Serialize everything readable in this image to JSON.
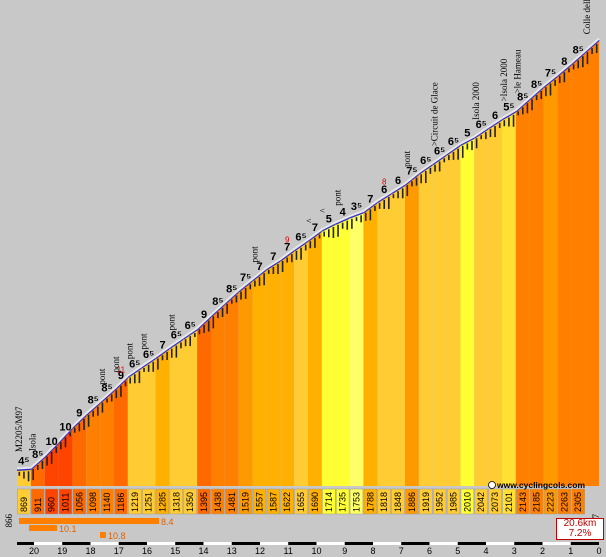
{
  "site": {
    "url": "www.cyclingcols.com",
    "icon": "copyright-icon"
  },
  "summary": {
    "length": "20.6km",
    "gradient": "7.2%"
  },
  "chart_data": {
    "type": "area",
    "title": "",
    "xlabel": "",
    "ylabel": "",
    "x_reversed": true,
    "xlim": [
      0,
      20.6
    ],
    "ylim": [
      820,
      2360
    ],
    "x_ticks": [
      "20",
      "19",
      "18",
      "17",
      "16",
      "15",
      "14",
      "13",
      "12",
      "11",
      "10",
      "9",
      "8",
      "7",
      "6",
      "5",
      "4",
      "3",
      "2",
      "1",
      "0"
    ],
    "start_elevation": "866",
    "end_elevation": "2347",
    "segments": [
      {
        "elev": "869",
        "grad": "4⁵",
        "color": "#ffcc33"
      },
      {
        "elev": "911",
        "grad": "8⁵",
        "color": "#ff6a00"
      },
      {
        "elev": "960",
        "grad": "10",
        "color": "#ff4400"
      },
      {
        "elev": "1011",
        "grad": "10",
        "color": "#ff4400"
      },
      {
        "elev": "1056",
        "grad": "9",
        "color": "#ff6a00"
      },
      {
        "elev": "1098",
        "grad": "8⁵",
        "color": "#ff8000"
      },
      {
        "elev": "1140",
        "grad": "8⁵",
        "color": "#ff8000"
      },
      {
        "elev": "1186",
        "grad": "9",
        "color": "#ff6a00"
      },
      {
        "elev": "1219",
        "grad": "6⁵",
        "color": "#ffcc33"
      },
      {
        "elev": "1251",
        "grad": "6⁵",
        "color": "#ffcc33"
      },
      {
        "elev": "1285",
        "grad": "7",
        "color": "#ffb000"
      },
      {
        "elev": "1318",
        "grad": "6⁵",
        "color": "#ffcc33"
      },
      {
        "elev": "1350",
        "grad": "6⁵",
        "color": "#ffcc33"
      },
      {
        "elev": "1395",
        "grad": "9",
        "color": "#ff6a00"
      },
      {
        "elev": "1438",
        "grad": "8⁵",
        "color": "#ff8000"
      },
      {
        "elev": "1481",
        "grad": "8⁵",
        "color": "#ff8000"
      },
      {
        "elev": "1519",
        "grad": "7⁵",
        "color": "#ff9900"
      },
      {
        "elev": "1557",
        "grad": "7",
        "color": "#ffb000"
      },
      {
        "elev": "1587",
        "grad": "7",
        "color": "#ffb000"
      },
      {
        "elev": "1622",
        "grad": "7",
        "color": "#ffb000"
      },
      {
        "elev": "1655",
        "grad": "6⁵",
        "color": "#ffcc33"
      },
      {
        "elev": "1690",
        "grad": "7",
        "color": "#ffb000"
      },
      {
        "elev": "1714",
        "grad": "5",
        "color": "#ffff33"
      },
      {
        "elev": "1735",
        "grad": "4",
        "color": "#ffff33"
      },
      {
        "elev": "1753",
        "grad": "3⁵",
        "color": "#ffff66"
      },
      {
        "elev": "1788",
        "grad": "7",
        "color": "#ffb000"
      },
      {
        "elev": "1818",
        "grad": "6",
        "color": "#ffcc33"
      },
      {
        "elev": "1848",
        "grad": "6",
        "color": "#ffcc33"
      },
      {
        "elev": "1886",
        "grad": "7⁵",
        "color": "#ff9900"
      },
      {
        "elev": "1919",
        "grad": "6⁵",
        "color": "#ffcc33"
      },
      {
        "elev": "1952",
        "grad": "6⁵",
        "color": "#ffcc33"
      },
      {
        "elev": "1985",
        "grad": "6⁵",
        "color": "#ffcc33"
      },
      {
        "elev": "2010",
        "grad": "5",
        "color": "#ffff33"
      },
      {
        "elev": "2042",
        "grad": "6⁵",
        "color": "#ffcc33"
      },
      {
        "elev": "2073",
        "grad": "6",
        "color": "#ffcc33"
      },
      {
        "elev": "2101",
        "grad": "5⁵",
        "color": "#ffe033"
      },
      {
        "elev": "2143",
        "grad": "8⁵",
        "color": "#ff8000"
      },
      {
        "elev": "2185",
        "grad": "8⁵",
        "color": "#ff8000"
      },
      {
        "elev": "2223",
        "grad": "7⁵",
        "color": "#ff9900"
      },
      {
        "elev": "2263",
        "grad": "8",
        "color": "#ff8000"
      },
      {
        "elev": "2305",
        "grad": "8⁵",
        "color": "#ff8000"
      }
    ],
    "max_gradients": [
      {
        "label": "11",
        "segment": 7
      },
      {
        "label": "9",
        "segment": 19
      },
      {
        "label": "8",
        "segment": 26
      }
    ],
    "annotations": [
      {
        "text": "M2205/M97",
        "segment": 0
      },
      {
        "text": "Isola",
        "segment": 1
      },
      {
        "text": "pont",
        "segment": 6
      },
      {
        "text": "pont",
        "segment": 7
      },
      {
        "text": "pont",
        "segment": 8
      },
      {
        "text": "pont",
        "segment": 9
      },
      {
        "text": "pont",
        "segment": 11
      },
      {
        "text": "pont",
        "segment": 17
      },
      {
        "text": "^",
        "segment": 21
      },
      {
        "text": "^",
        "segment": 22
      },
      {
        "text": "pont",
        "segment": 23
      },
      {
        "text": "pont",
        "segment": 28
      },
      {
        "text": ">Circuit de Glace",
        "segment": 30
      },
      {
        "text": "Isola 2000",
        "segment": 33
      },
      {
        "text": ">Isola 2000",
        "segment": 35
      },
      {
        "text": ">le Hameau",
        "segment": 36
      },
      {
        "text": "Colle della Lombarda/Col de la Lombarde",
        "segment": 42
      }
    ],
    "legend": [
      {
        "label": "8.4"
      },
      {
        "label": "10.1"
      },
      {
        "label": "10.8"
      }
    ]
  }
}
